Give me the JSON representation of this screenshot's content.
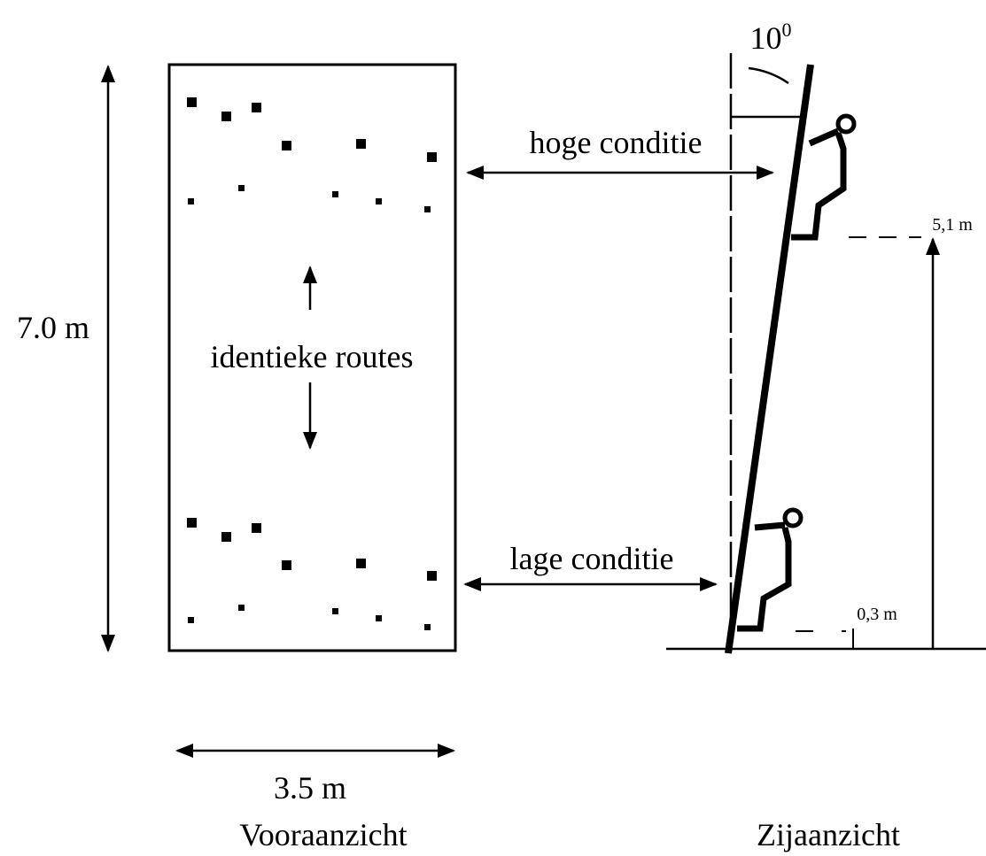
{
  "left_view": {
    "height_label": "7.0 m",
    "width_label": "3.5 m",
    "routes_label": "identieke routes",
    "caption": "Vooraanzicht"
  },
  "right_view": {
    "angle": {
      "value": "10",
      "sup": "0"
    },
    "high_label": "5,1 m",
    "low_label": "0,3 m",
    "caption": "Zijaanzicht"
  },
  "conditions": {
    "high": "hoge conditie",
    "low": "lage conditie"
  }
}
